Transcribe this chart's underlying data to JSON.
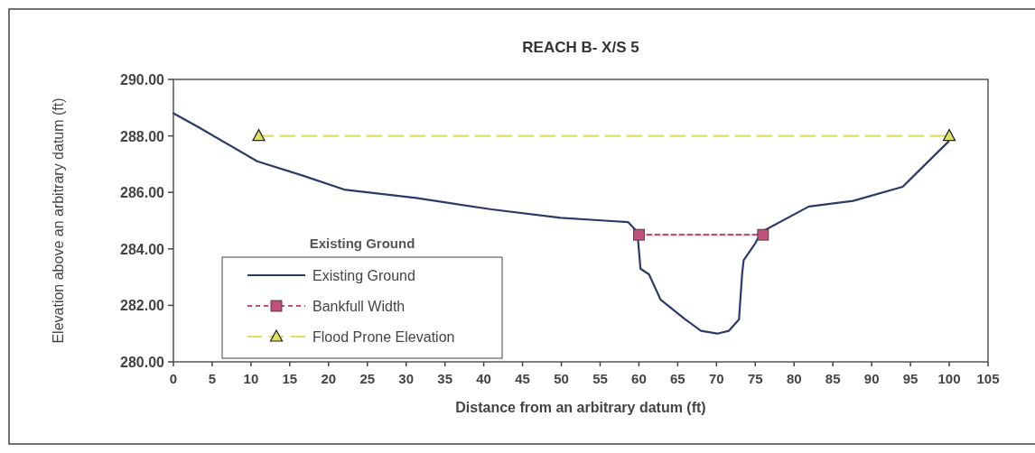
{
  "chart_data": {
    "type": "line",
    "title": "REACH B- X/S 5",
    "xlabel": "Distance from an arbitrary datum (ft)",
    "ylabel": "Elevation above an arbitrary datum (ft)",
    "legend_title": "Existing Ground",
    "legend": "bottom left",
    "grid": false,
    "xlim": [
      0,
      105
    ],
    "xticks": [
      0,
      5,
      10,
      15,
      20,
      25,
      30,
      35,
      40,
      45,
      50,
      55,
      60,
      65,
      70,
      75,
      80,
      85,
      90,
      95,
      100,
      105
    ],
    "ylim": [
      280,
      290
    ],
    "yticks": [
      {
        "value": 280,
        "label": "280.00"
      },
      {
        "value": 282,
        "label": "282.00"
      },
      {
        "value": 284,
        "label": "284.00"
      },
      {
        "value": 286,
        "label": "286.00"
      },
      {
        "value": 288,
        "label": "288.00"
      },
      {
        "value": 290,
        "label": "290.00"
      }
    ],
    "series": [
      {
        "name": "Existing Ground",
        "color": "#2b3a67",
        "marker": "none",
        "line_style": "solid",
        "x": [
          0,
          3.3,
          10.8,
          16.6,
          22,
          31.3,
          41,
          49.9,
          55.6,
          58.6,
          59.8,
          60.2,
          61.3,
          62.8,
          66,
          68,
          70.1,
          71.6,
          72.9,
          73.3,
          73.5,
          75,
          75.8,
          81.9,
          87.6,
          94,
          99.9
        ],
        "values": [
          288.8,
          288.3,
          287.1,
          286.6,
          286.1,
          285.8,
          285.4,
          285.1,
          285,
          284.95,
          284.6,
          283.3,
          283.1,
          282.2,
          281.5,
          281.1,
          281,
          281.1,
          281.5,
          283.1,
          283.6,
          284.2,
          284.6,
          285.5,
          285.7,
          286.2,
          287.8
        ]
      },
      {
        "name": "Bankfull Width",
        "color": "#c0507a",
        "marker": "square",
        "line_style": "dashed",
        "x": [
          60,
          76
        ],
        "values": [
          284.5,
          284.5
        ]
      },
      {
        "name": "Flood Prone Elevation",
        "color": "#e0e060",
        "marker": "triangle",
        "line_style": "dashed",
        "x": [
          11,
          100
        ],
        "values": [
          288,
          288
        ]
      }
    ]
  }
}
